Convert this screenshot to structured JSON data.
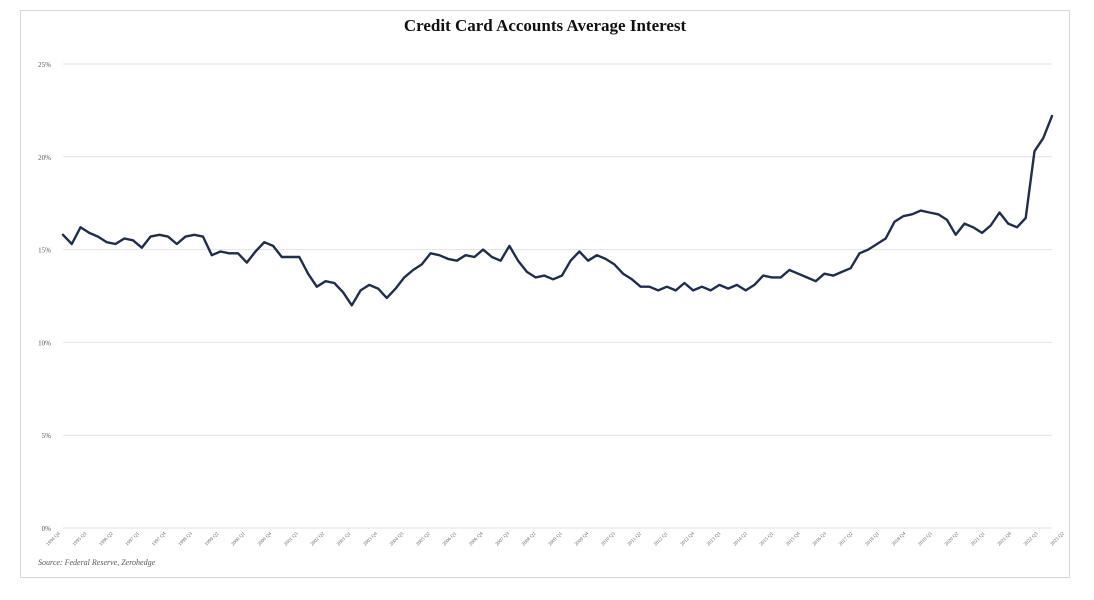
{
  "chart_data": {
    "type": "line",
    "title": "Credit Card Accounts Average Interest",
    "source": "Source: Federal Reserve, Zerohedge",
    "y_ticks": [
      "0%",
      "5%",
      "10%",
      "15%",
      "20%",
      "25%"
    ],
    "ylim": [
      0,
      25
    ],
    "grid": true,
    "line_color": "#1f2d4e",
    "x_start": "1994 Q4",
    "x_end": "2023 Q3",
    "x_tick_labels": [
      "1994 Q4",
      "1995 Q3",
      "1996 Q2",
      "1997 Q1",
      "1997 Q4",
      "1998 Q3",
      "1999 Q2",
      "2000 Q1",
      "2000 Q4",
      "2001 Q3",
      "2002 Q2",
      "2003 Q1",
      "2003 Q4",
      "2004 Q3",
      "2005 Q2",
      "2006 Q1",
      "2006 Q4",
      "2007 Q3",
      "2008 Q2",
      "2009 Q1",
      "2009 Q4",
      "2010 Q3",
      "2011 Q2",
      "2012 Q1",
      "2012 Q4",
      "2013 Q3",
      "2014 Q2",
      "2015 Q1",
      "2015 Q4",
      "2016 Q3",
      "2017 Q2",
      "2018 Q1",
      "2018 Q4",
      "2019 Q3",
      "2020 Q2",
      "2021 Q1",
      "2021 Q4",
      "2022 Q3",
      "2023 Q2"
    ],
    "values": [
      15.8,
      15.3,
      16.2,
      15.9,
      15.7,
      15.4,
      15.3,
      15.6,
      15.5,
      15.1,
      15.7,
      15.8,
      15.7,
      15.3,
      15.7,
      15.8,
      15.7,
      14.7,
      14.9,
      14.8,
      14.8,
      14.3,
      14.9,
      15.4,
      15.2,
      14.6,
      14.6,
      14.6,
      13.7,
      13.0,
      13.3,
      13.2,
      12.7,
      12.0,
      12.8,
      13.1,
      12.9,
      12.4,
      12.9,
      13.5,
      13.9,
      14.2,
      14.8,
      14.7,
      14.5,
      14.4,
      14.7,
      14.6,
      15.0,
      14.6,
      14.4,
      15.2,
      14.4,
      13.8,
      13.5,
      13.6,
      13.4,
      13.6,
      14.4,
      14.9,
      14.4,
      14.7,
      14.5,
      14.2,
      13.7,
      13.4,
      13.0,
      13.0,
      12.8,
      13.0,
      12.8,
      13.2,
      12.8,
      13.0,
      12.8,
      13.1,
      12.9,
      13.1,
      12.8,
      13.1,
      13.6,
      13.5,
      13.5,
      13.9,
      13.7,
      13.5,
      13.3,
      13.7,
      13.6,
      13.8,
      14.0,
      14.8,
      15.0,
      15.3,
      15.6,
      16.5,
      16.8,
      16.9,
      17.1,
      17.0,
      16.9,
      16.6,
      15.8,
      16.4,
      16.2,
      15.9,
      16.3,
      17.0,
      16.4,
      16.2,
      16.7,
      20.3,
      21.0,
      22.2
    ]
  }
}
